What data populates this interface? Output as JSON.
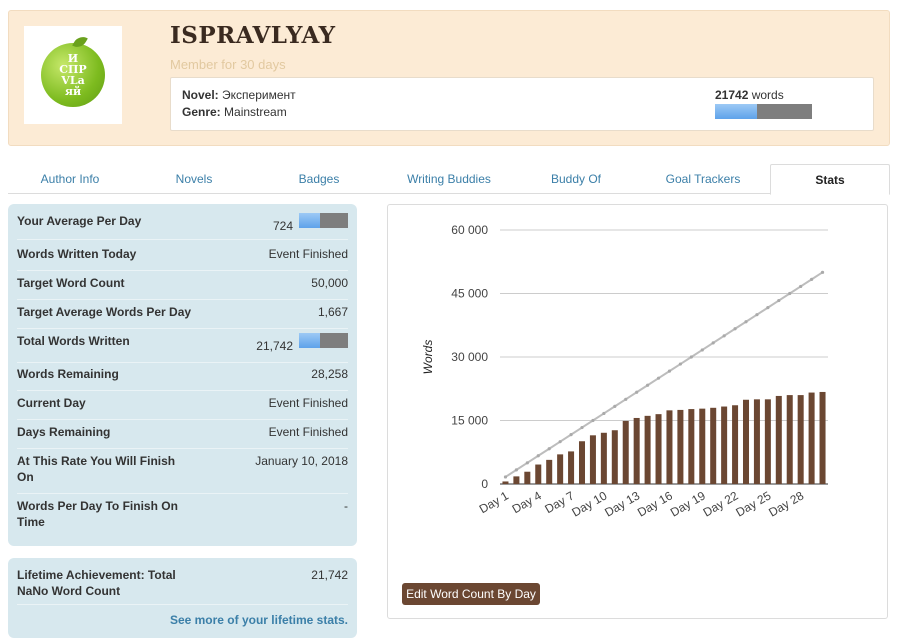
{
  "header": {
    "avatar_letters": [
      "И",
      "СПР",
      "VL",
      "а",
      "яй"
    ],
    "username": "ISPRAVLYAY",
    "member_since": "Member for 30 days",
    "novel_label": "Novel:",
    "novel_value": "Эксперимент",
    "genre_label": "Genre:",
    "genre_value": "Mainstream",
    "word_count_number": "21742",
    "word_count_unit": "words",
    "word_progress": 0.43484
  },
  "tabs": [
    {
      "label": "Author Info",
      "active": false
    },
    {
      "label": "Novels",
      "active": false
    },
    {
      "label": "Badges",
      "active": false
    },
    {
      "label": "Writing Buddies",
      "active": false
    },
    {
      "label": "Buddy Of",
      "active": false
    },
    {
      "label": "Goal Trackers",
      "active": false
    },
    {
      "label": "Stats",
      "active": true
    }
  ],
  "stats": {
    "rows": [
      {
        "label": "Your Average Per Day",
        "value": "724",
        "bar": 0.43484
      },
      {
        "label": "Words Written Today",
        "value": "Event Finished"
      },
      {
        "label": "Target Word Count",
        "value": "50,000"
      },
      {
        "label": "Target Average Words Per Day",
        "value": "1,667"
      },
      {
        "label": "Total Words Written",
        "value": "21,742",
        "bar": 0.43484
      },
      {
        "label": "Words Remaining",
        "value": "28,258"
      },
      {
        "label": "Current Day",
        "value": "Event Finished"
      },
      {
        "label": "Days Remaining",
        "value": "Event Finished"
      },
      {
        "label": "At This Rate You Will Finish On",
        "value": "January 10, 2018"
      },
      {
        "label": "Words Per Day To Finish On Time",
        "value": "-"
      }
    ]
  },
  "lifetime": {
    "label": "Lifetime Achievement: Total NaNo Word Count",
    "value": "21,742",
    "link": "See more of your lifetime stats."
  },
  "edit_button": "Edit Word Count By Day",
  "colors": {
    "bar": "#6b4732",
    "target_line": "#bdbdbd",
    "tab_link": "#3b7fa8",
    "panel_bg": "#d7e8ee",
    "header_bg": "#fcebd5"
  },
  "chart_data": {
    "type": "bar",
    "ylabel": "Words",
    "ylim": [
      0,
      60000
    ],
    "yticks": [
      0,
      15000,
      30000,
      45000,
      60000
    ],
    "ytick_labels": [
      "0",
      "15 000",
      "30 000",
      "45 000",
      "60 000"
    ],
    "xtick_labels": [
      "Day 1",
      "Day 4",
      "Day 7",
      "Day 10",
      "Day 13",
      "Day 16",
      "Day 19",
      "Day 22",
      "Day 25",
      "Day 28"
    ],
    "categories": [
      "Day 1",
      "Day 2",
      "Day 3",
      "Day 4",
      "Day 5",
      "Day 6",
      "Day 7",
      "Day 8",
      "Day 9",
      "Day 10",
      "Day 11",
      "Day 12",
      "Day 13",
      "Day 14",
      "Day 15",
      "Day 16",
      "Day 17",
      "Day 18",
      "Day 19",
      "Day 20",
      "Day 21",
      "Day 22",
      "Day 23",
      "Day 24",
      "Day 25",
      "Day 26",
      "Day 27",
      "Day 28",
      "Day 29",
      "Day 30"
    ],
    "series": [
      {
        "type": "bar",
        "values": [
          600,
          1800,
          2900,
          4600,
          5700,
          7000,
          7700,
          10100,
          11500,
          12100,
          12700,
          14900,
          15600,
          16100,
          16500,
          17400,
          17500,
          17700,
          17800,
          18000,
          18300,
          18600,
          19900,
          20000,
          20000,
          20800,
          21000,
          21000,
          21600,
          21742
        ]
      },
      {
        "type": "line",
        "values": [
          1667,
          3333,
          5000,
          6667,
          8333,
          10000,
          11667,
          13333,
          15000,
          16667,
          18333,
          20000,
          21667,
          23333,
          25000,
          26667,
          28333,
          30000,
          31667,
          33333,
          35000,
          36667,
          38333,
          40000,
          41667,
          43333,
          45000,
          46667,
          48333,
          50000
        ]
      }
    ],
    "grid": true
  }
}
